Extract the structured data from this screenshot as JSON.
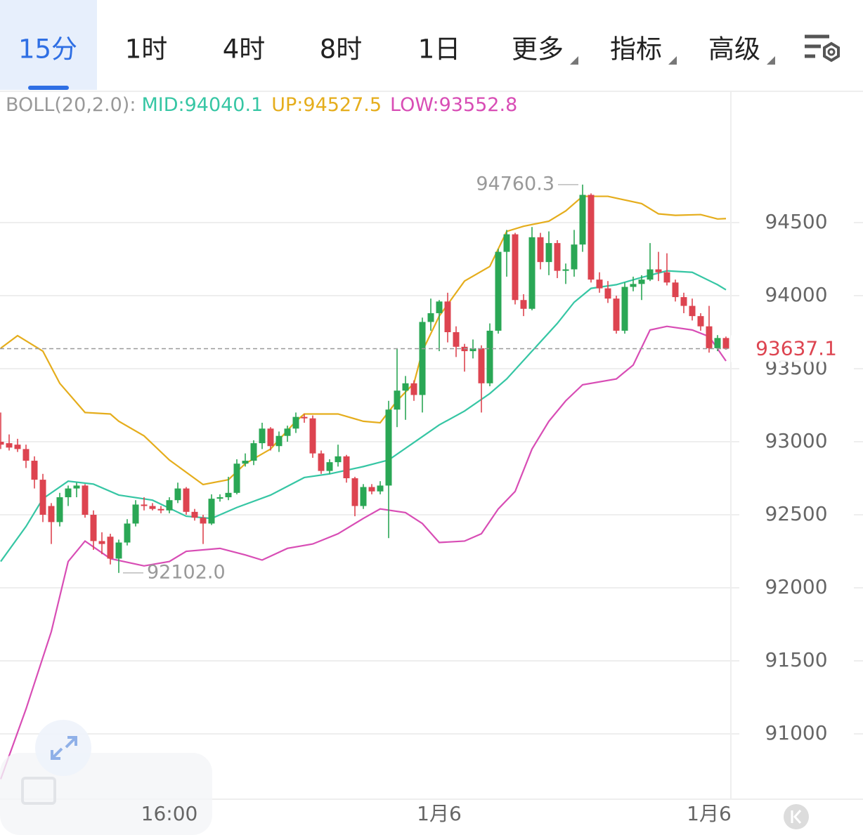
{
  "toolbar": {
    "tabs": [
      {
        "label": "15分"
      },
      {
        "label": "1时"
      },
      {
        "label": "4时"
      },
      {
        "label": "8时"
      },
      {
        "label": "1日"
      },
      {
        "label": "更多",
        "menu": true
      },
      {
        "label": "指标",
        "menu": true
      },
      {
        "label": "高级",
        "menu": true
      }
    ],
    "active": 0
  },
  "chart_data": {
    "type": "candlestick",
    "indicator_label": "BOLL(20,2.0):",
    "open": [
      93000,
      92990,
      92980,
      92950,
      92870,
      92740,
      92560,
      92450,
      92620,
      92680,
      92700,
      92500,
      92320,
      92350,
      92200,
      92310,
      92440,
      92570,
      92560,
      92540,
      92530,
      92600,
      92680,
      92520,
      92480,
      92440,
      92610,
      92620,
      92650,
      92850,
      92870,
      92990,
      93090,
      92970,
      93040,
      93090,
      93170,
      93160,
      92920,
      92800,
      92860,
      92900,
      92750,
      92560,
      92690,
      92660,
      92700,
      93220,
      93350,
      93400,
      93320,
      93820,
      93880,
      93960,
      93750,
      93650,
      93620,
      93640,
      93400,
      93760,
      94300,
      94420,
      93970,
      93910,
      94400,
      94230,
      94360,
      94170,
      94180,
      94350,
      94690,
      94110,
      94050,
      93980,
      93760,
      94060,
      94080,
      94110,
      94180,
      94160,
      94090,
      93990,
      93930,
      93860,
      93790,
      93640,
      93710
    ],
    "high": [
      93200,
      93050,
      93020,
      92980,
      92900,
      92780,
      92580,
      92650,
      92700,
      92720,
      92710,
      92530,
      92380,
      92370,
      92330,
      92470,
      92600,
      92620,
      92580,
      92560,
      92620,
      92720,
      92690,
      92540,
      92500,
      92640,
      92640,
      92760,
      92880,
      92920,
      93010,
      93130,
      93100,
      93070,
      93110,
      93200,
      93190,
      93180,
      92940,
      92880,
      92980,
      92910,
      92760,
      92710,
      92710,
      92730,
      93280,
      93640,
      93450,
      93420,
      93850,
      93980,
      93970,
      94020,
      93790,
      93670,
      93700,
      93660,
      93810,
      94320,
      94450,
      94430,
      94010,
      94470,
      94430,
      94440,
      94380,
      94220,
      94450,
      94760.3,
      94700,
      94160,
      94100,
      94000,
      94090,
      94130,
      94140,
      94360,
      94300,
      94290,
      94110,
      94020,
      93980,
      93880,
      93930,
      93730,
      93720
    ],
    "low": [
      92950,
      92940,
      92930,
      92820,
      92680,
      92450,
      92300,
      92420,
      92560,
      92620,
      92480,
      92260,
      92230,
      92160,
      92102,
      92290,
      92420,
      92530,
      92530,
      92510,
      92510,
      92580,
      92500,
      92460,
      92300,
      92430,
      92590,
      92600,
      92640,
      92830,
      92840,
      92950,
      92940,
      92930,
      93000,
      93060,
      93130,
      92890,
      92780,
      92780,
      92830,
      92720,
      92490,
      92540,
      92640,
      92640,
      92340,
      93100,
      93150,
      93280,
      93200,
      93760,
      93620,
      93680,
      93580,
      93480,
      93570,
      93200,
      93380,
      93740,
      94130,
      93940,
      93860,
      93900,
      94180,
      94140,
      94120,
      94080,
      94130,
      94300,
      94090,
      94020,
      93950,
      93740,
      93740,
      94030,
      93970,
      94100,
      94100,
      94070,
      93960,
      93880,
      93830,
      93760,
      93610,
      93620,
      93630
    ],
    "close": [
      92980,
      92960,
      92950,
      92870,
      92740,
      92500,
      92450,
      92620,
      92680,
      92700,
      92500,
      92320,
      92300,
      92200,
      92310,
      92440,
      92570,
      92560,
      92540,
      92530,
      92600,
      92680,
      92520,
      92480,
      92440,
      92610,
      92620,
      92650,
      92850,
      92870,
      92990,
      93090,
      92970,
      93040,
      93090,
      93170,
      93160,
      92920,
      92800,
      92860,
      92900,
      92750,
      92560,
      92690,
      92660,
      92700,
      93220,
      93350,
      93400,
      93320,
      93820,
      93880,
      93960,
      93750,
      93650,
      93620,
      93640,
      93400,
      93760,
      94300,
      94420,
      93970,
      93910,
      94400,
      94230,
      94360,
      94170,
      94180,
      94350,
      94690,
      94110,
      94050,
      93980,
      93760,
      94060,
      94080,
      94110,
      94180,
      94160,
      94090,
      93990,
      93930,
      93860,
      93790,
      93640,
      93710,
      93637.1
    ],
    "up_color": "#2aa755",
    "down_color": "#dd4450",
    "series": [
      {
        "name": "MID:94040.1",
        "color": "#36c6a4",
        "x": [
          0,
          3,
          5,
          8,
          11,
          14,
          18,
          22,
          25,
          28,
          32,
          36,
          39,
          43,
          46,
          49,
          52,
          55,
          58,
          60,
          63,
          66,
          68,
          70,
          73,
          76,
          79,
          82,
          85,
          86
        ],
        "values": [
          92180,
          92420,
          92610,
          92730,
          92710,
          92635,
          92600,
          92490,
          92475,
          92550,
          92635,
          92755,
          92780,
          92830,
          92875,
          92995,
          93115,
          93210,
          93330,
          93430,
          93620,
          93810,
          93955,
          94050,
          94075,
          94125,
          94170,
          94160,
          94075,
          94040.1
        ]
      },
      {
        "name": "UP:94527.5",
        "color": "#e5ad1c",
        "x": [
          0,
          2,
          5,
          7,
          10,
          13,
          14,
          17,
          20,
          24,
          27,
          29,
          32,
          35,
          36,
          40,
          43,
          45,
          47,
          49,
          50,
          52,
          55,
          58,
          60,
          62,
          65,
          67,
          69,
          72,
          76,
          78,
          80,
          83,
          85,
          86
        ],
        "values": [
          93640,
          93726,
          93620,
          93400,
          93200,
          93190,
          93140,
          93040,
          92875,
          92707,
          92740,
          92850,
          92950,
          93140,
          93190,
          93190,
          93140,
          93130,
          93280,
          93400,
          93620,
          93860,
          94100,
          94200,
          94440,
          94475,
          94510,
          94580,
          94680,
          94680,
          94630,
          94560,
          94550,
          94555,
          94525,
          94527.5
        ]
      },
      {
        "name": "LOW:93552.8",
        "color": "#d84db5",
        "x": [
          0,
          3,
          6,
          8,
          10,
          13,
          17,
          20,
          22,
          26,
          29,
          31,
          34,
          37,
          40,
          43,
          45,
          48,
          50,
          52,
          55,
          57,
          59,
          61,
          63,
          65,
          67,
          69,
          73,
          75,
          77,
          79,
          82,
          84,
          86
        ],
        "values": [
          90690,
          91170,
          91700,
          92180,
          92320,
          92200,
          92150,
          92180,
          92250,
          92270,
          92225,
          92190,
          92270,
          92300,
          92370,
          92475,
          92540,
          92515,
          92440,
          92310,
          92320,
          92370,
          92540,
          92660,
          92950,
          93140,
          93280,
          93390,
          93430,
          93525,
          93765,
          93790,
          93765,
          93720,
          93552.8
        ]
      }
    ],
    "annotations": [
      {
        "index": 69,
        "value": 94760.3,
        "label": "94760.3"
      },
      {
        "index": 14,
        "value": 92102,
        "label": "92102.0"
      }
    ],
    "xticks": [
      {
        "value": 20,
        "label": "16:00"
      },
      {
        "value": 52,
        "label": "1月6"
      },
      {
        "value": 84,
        "label": "1月6"
      }
    ],
    "ylim": [
      90553,
      95399
    ],
    "yticks": [
      91000,
      91500,
      92000,
      92500,
      93000,
      93500,
      94000,
      94500
    ],
    "grid": true
  }
}
